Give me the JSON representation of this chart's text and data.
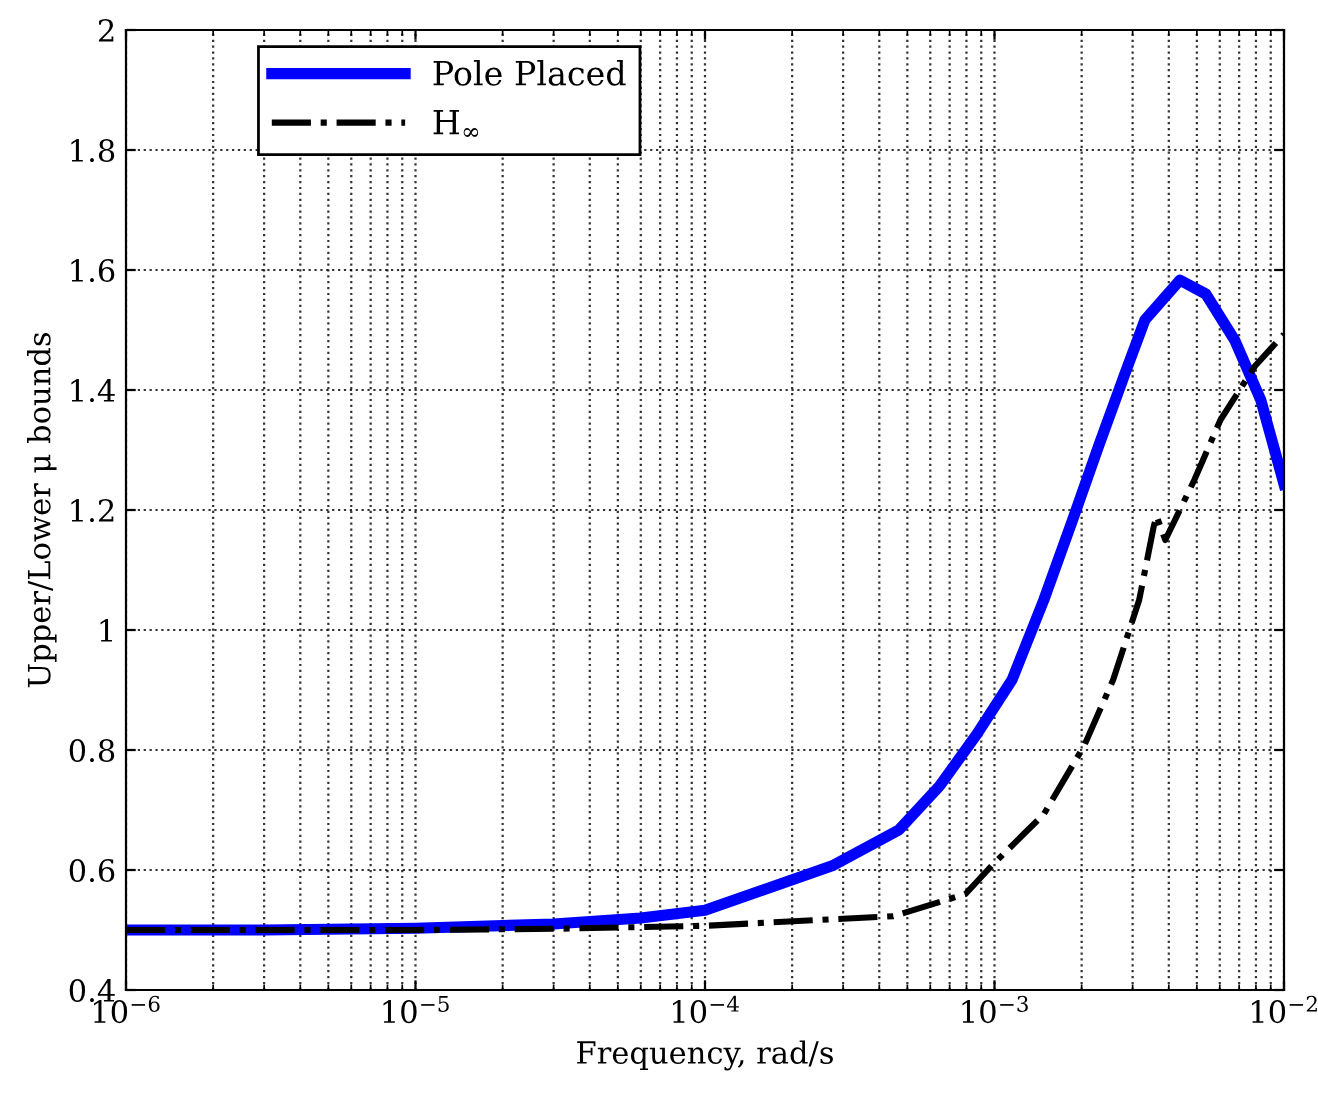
{
  "chart_data": {
    "type": "line",
    "xlabel": "Frequency, rad/s",
    "ylabel": "Upper/Lower μ bounds",
    "log": "x",
    "grid": true,
    "legend": "top left",
    "marker": "none",
    "xlim": [
      1e-06,
      0.01
    ],
    "ylim": [
      0.4,
      2
    ],
    "xticks": [
      {
        "value": 1e-06,
        "label": "10$^{−6}$"
      },
      {
        "value": 1e-05,
        "label": "10$^{−5}$"
      },
      {
        "value": 0.0001,
        "label": "10$^{−4}$"
      },
      {
        "value": 0.001,
        "label": "10$^{−3}$"
      },
      {
        "value": 0.01,
        "label": "10$^{−2}$"
      }
    ],
    "yticks": [
      0.4,
      0.6,
      0.8,
      1,
      1.2,
      1.4,
      1.6,
      1.8,
      2
    ],
    "series": [
      {
        "name": "Pole Placed",
        "color": "#0000ff",
        "line_style": "solid",
        "x": [
          1e-06,
          3e-06,
          1e-05,
          3e-05,
          6e-05,
          0.0001,
          0.000275,
          0.000468,
          0.000646,
          0.000871,
          0.00115,
          0.00148,
          0.00186,
          0.00229,
          0.00282,
          0.00331,
          0.00437,
          0.00537,
          0.00676,
          0.00832,
          0.01
        ],
        "values": [
          0.5,
          0.5,
          0.503,
          0.51,
          0.52,
          0.533,
          0.607,
          0.667,
          0.74,
          0.827,
          0.917,
          1.05,
          1.183,
          1.307,
          1.427,
          1.517,
          1.583,
          1.56,
          1.483,
          1.383,
          1.243
        ]
      },
      {
        "name": "H$_{∞}$",
        "color": "#000000",
        "line_style": "dashdot",
        "x": [
          1e-06,
          1e-05,
          3e-05,
          0.0001,
          0.000447,
          0.000794,
          0.000977,
          0.00148,
          0.00204,
          0.00257,
          0.00316,
          0.00355,
          0.00363,
          0.00389,
          0.0049,
          0.00603,
          0.00794,
          0.01
        ],
        "values": [
          0.5,
          0.5,
          0.502,
          0.507,
          0.523,
          0.56,
          0.607,
          0.693,
          0.807,
          0.917,
          1.05,
          1.173,
          1.19,
          1.15,
          1.25,
          1.35,
          1.44,
          1.493
        ]
      }
    ]
  }
}
